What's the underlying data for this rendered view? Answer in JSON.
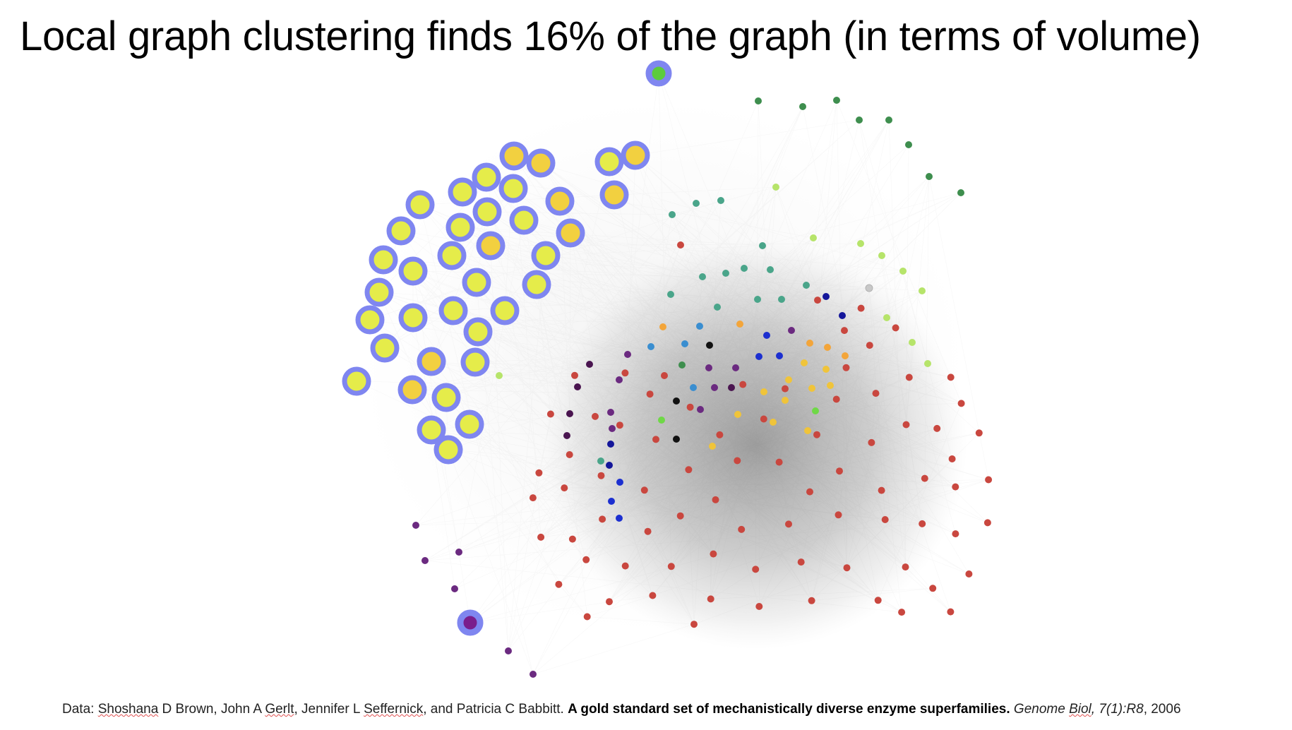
{
  "slide": {
    "title": "Local graph clustering finds 16% of the graph (in terms of volume)"
  },
  "citation": {
    "prefix": "Data: ",
    "author1": "Shoshana",
    "author1_rest": " D Brown, John A ",
    "author2": "Gerlt",
    "author2_rest": ", Jennifer L ",
    "author3": "Seffernick",
    "author3_rest": ", and Patricia C Babbitt. ",
    "paper_title": "A gold standard set of mechanistically diverse enzyme superfamilies.",
    "journal_pre": " Genome ",
    "journal_biol": "Biol",
    "journal_post": ", 7(1):R8",
    "year": ", 2006"
  },
  "colors": {
    "highlight_ring": "#7f86f0",
    "cluster_yellow": "#e5ec4a",
    "cluster_gold": "#f2d040",
    "seed_green": "#5ccc3c",
    "seed_purple": "#7a1e8c",
    "red": "#c9473f",
    "orange": "#f3a53a",
    "gold": "#f0c43a",
    "teal": "#4aa58a",
    "dark_green": "#3e8e4e",
    "lime": "#b6e46a",
    "purple": "#6b2a80",
    "dark_purple": "#4a1550",
    "navy": "#14169a",
    "blue": "#1c2fd0",
    "sky": "#3a8ed0",
    "black": "#111111",
    "grey": "#c8c8c8",
    "bright_green": "#6fd847"
  }
}
